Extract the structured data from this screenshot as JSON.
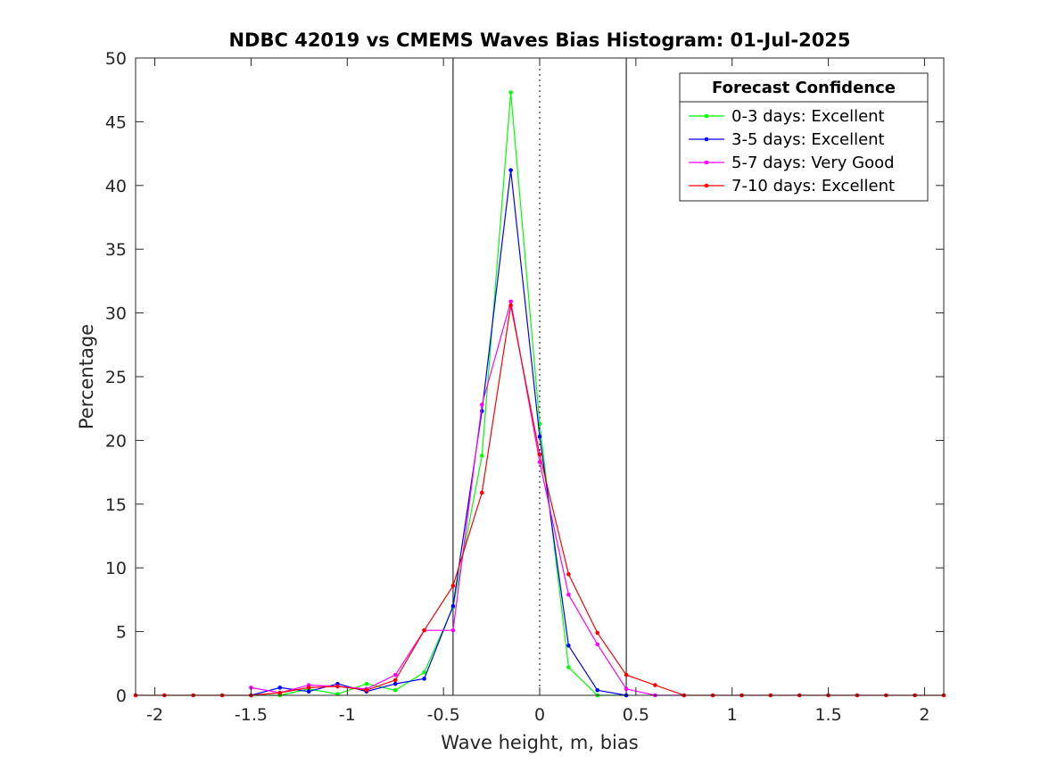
{
  "chart_data": {
    "type": "line",
    "title": "NDBC 42019 vs CMEMS Waves Bias Histogram: 01-Jul-2025",
    "xlabel": "Wave height, m, bias",
    "ylabel": "Percentage",
    "xlim": [
      -2.1,
      2.1
    ],
    "ylim": [
      0,
      50
    ],
    "xticks": [
      -2,
      -1.5,
      -1,
      -0.5,
      0,
      0.5,
      1,
      1.5,
      2
    ],
    "xtick_labels": [
      "-2",
      "-1.5",
      "-1",
      "-0.5",
      "0",
      "0.5",
      "1",
      "1.5",
      "2"
    ],
    "yticks": [
      0,
      5,
      10,
      15,
      20,
      25,
      30,
      35,
      40,
      45,
      50
    ],
    "ytick_labels": [
      "0",
      "5",
      "10",
      "15",
      "20",
      "25",
      "30",
      "35",
      "40",
      "45",
      "50"
    ],
    "grid": false,
    "vertical_lines": [
      {
        "x": -0.45,
        "style": "solid"
      },
      {
        "x": 0,
        "style": "dotted"
      },
      {
        "x": 0.45,
        "style": "solid"
      }
    ],
    "legend": {
      "title": "Forecast Confidence",
      "placement": "top-right"
    },
    "series": [
      {
        "name": "0-3 days: Excellent",
        "color": "#00ff00",
        "x": [
          -1.5,
          -1.35,
          -1.2,
          -1.05,
          -0.9,
          -0.75,
          -0.6,
          -0.45,
          -0.3,
          -0.15,
          0,
          0.15,
          0.3,
          0.45
        ],
        "y": [
          0,
          0,
          0.5,
          0.1,
          0.9,
          0.4,
          1.8,
          6.9,
          18.8,
          47.3,
          21.3,
          2.2,
          0,
          0
        ]
      },
      {
        "name": "3-5 days: Excellent",
        "color": "#0000ff",
        "x": [
          -1.5,
          -1.35,
          -1.2,
          -1.05,
          -0.9,
          -0.75,
          -0.6,
          -0.45,
          -0.3,
          -0.15,
          0,
          0.15,
          0.3,
          0.45
        ],
        "y": [
          0,
          0.6,
          0.3,
          0.9,
          0.3,
          0.9,
          1.3,
          7.0,
          22.3,
          41.2,
          20.3,
          3.9,
          0.4,
          0
        ]
      },
      {
        "name": "5-7 days: Very Good",
        "color": "#ff00ff",
        "x": [
          -1.5,
          -1.35,
          -1.2,
          -1.05,
          -0.9,
          -0.75,
          -0.6,
          -0.45,
          -0.3,
          -0.15,
          0,
          0.15,
          0.3,
          0.45,
          0.6,
          0.75
        ],
        "y": [
          0.6,
          0.2,
          0.8,
          0.7,
          0.5,
          1.6,
          5.1,
          5.1,
          22.8,
          30.9,
          18.3,
          7.9,
          4.0,
          0.5,
          0,
          0
        ]
      },
      {
        "name": "7-10 days: Excellent",
        "color": "#ff0000",
        "x": [
          -2.1,
          -1.95,
          -1.8,
          -1.65,
          -1.5,
          -1.35,
          -1.2,
          -1.05,
          -0.9,
          -0.75,
          -0.6,
          -0.45,
          -0.3,
          -0.15,
          0,
          0.15,
          0.3,
          0.45,
          0.6,
          0.75,
          0.9,
          1.05,
          1.2,
          1.35,
          1.5,
          1.65,
          1.8,
          1.95,
          2.1
        ],
        "y": [
          0,
          0,
          0,
          0,
          0,
          0.2,
          0.6,
          0.7,
          0.4,
          1.2,
          5.1,
          8.6,
          15.9,
          30.6,
          18.9,
          9.5,
          4.9,
          1.6,
          0.8,
          0,
          0,
          0,
          0,
          0,
          0,
          0,
          0,
          0,
          0
        ]
      }
    ]
  }
}
